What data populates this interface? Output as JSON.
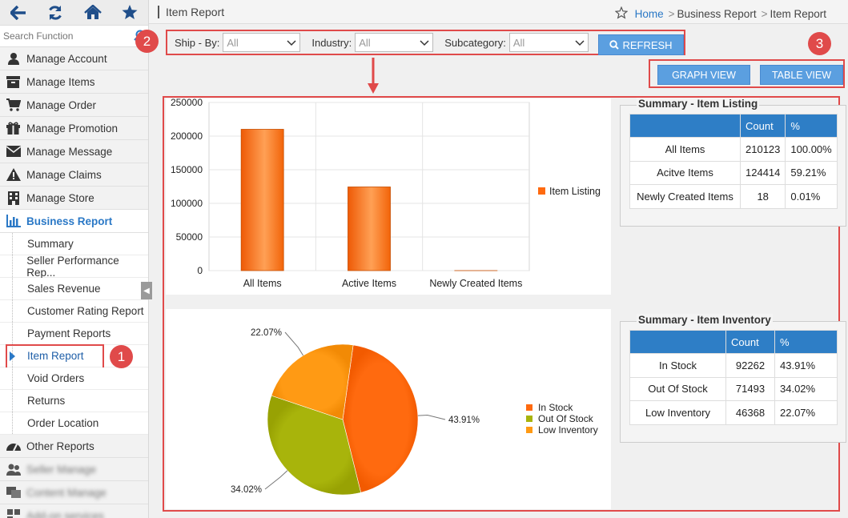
{
  "sidebar": {
    "search_placeholder": "Search Function",
    "items": [
      {
        "label": "Manage Account",
        "icon": "user-icon"
      },
      {
        "label": "Manage Items",
        "icon": "archive-icon"
      },
      {
        "label": "Manage Order",
        "icon": "cart-icon"
      },
      {
        "label": "Manage Promotion",
        "icon": "gift-icon"
      },
      {
        "label": "Manage Message",
        "icon": "envelope-icon"
      },
      {
        "label": "Manage Claims",
        "icon": "warning-icon"
      },
      {
        "label": "Manage Store",
        "icon": "building-icon"
      },
      {
        "label": "Business Report",
        "icon": "bar-chart-icon"
      }
    ],
    "subitems": [
      "Summary",
      "Seller Performance Rep...",
      "Sales Revenue",
      "Customer Rating Report",
      "Payment Reports",
      "Item Report",
      "Void Orders",
      "Returns",
      "Order Location"
    ],
    "bottom_items": [
      {
        "label": "Other Reports",
        "icon": "dashboard-icon"
      },
      {
        "label": "Seller Manage",
        "icon": "users-icon"
      },
      {
        "label": "Content Manage",
        "icon": "content-icon"
      },
      {
        "label": "Add-on services",
        "icon": "addon-icon"
      }
    ]
  },
  "header": {
    "title": "Item Report",
    "breadcrumb": [
      "Home",
      "Business Report",
      "Item Report"
    ]
  },
  "filters": {
    "ship_by_label": "Ship - By:",
    "ship_by_value": "All",
    "industry_label": "Industry:",
    "industry_value": "All",
    "subcategory_label": "Subcategory:",
    "subcategory_value": "All",
    "refresh_label": "REFRESH"
  },
  "views": {
    "graph": "GRAPH VIEW",
    "table": "TABLE VIEW"
  },
  "badges": [
    "1",
    "2",
    "3"
  ],
  "colors": {
    "accent": "#2e7ec6",
    "annotation": "#e04a4a",
    "bar": "#ff6a0f",
    "in_stock": "#ff6a0f",
    "out_of_stock": "#a8b40b",
    "low_inventory": "#ff9a14"
  },
  "listing_summary": {
    "title": "Summary - Item Listing",
    "headers": [
      "",
      "Count",
      "%"
    ],
    "rows": [
      [
        "All Items",
        "210123",
        "100.00%"
      ],
      [
        "Acitve Items",
        "124414",
        "59.21%"
      ],
      [
        "Newly Created Items",
        "18",
        "0.01%"
      ]
    ]
  },
  "inventory_summary": {
    "title": "Summary - Item Inventory",
    "headers": [
      "",
      "Count",
      "%"
    ],
    "rows": [
      [
        "In Stock",
        "92262",
        "43.91%"
      ],
      [
        "Out Of Stock",
        "71493",
        "34.02%"
      ],
      [
        "Low Inventory",
        "46368",
        "22.07%"
      ]
    ]
  },
  "chart_data": [
    {
      "type": "bar",
      "categories": [
        "All Items",
        "Active Items",
        "Newly Created Items"
      ],
      "series": [
        {
          "name": "Item Listing",
          "values": [
            210123,
            124414,
            18
          ]
        }
      ],
      "yticks": [
        "0",
        "50000",
        "100000",
        "150000",
        "200000",
        "250000"
      ],
      "ylim": [
        0,
        250000
      ],
      "grid": true,
      "legend": "right"
    },
    {
      "type": "pie",
      "labels": [
        "In Stock",
        "Out Of Stock",
        "Low Inventory"
      ],
      "values": [
        43.91,
        34.02,
        22.07
      ],
      "value_labels": [
        "43.91%",
        "34.02%",
        "22.07%"
      ],
      "legend": "right"
    }
  ]
}
